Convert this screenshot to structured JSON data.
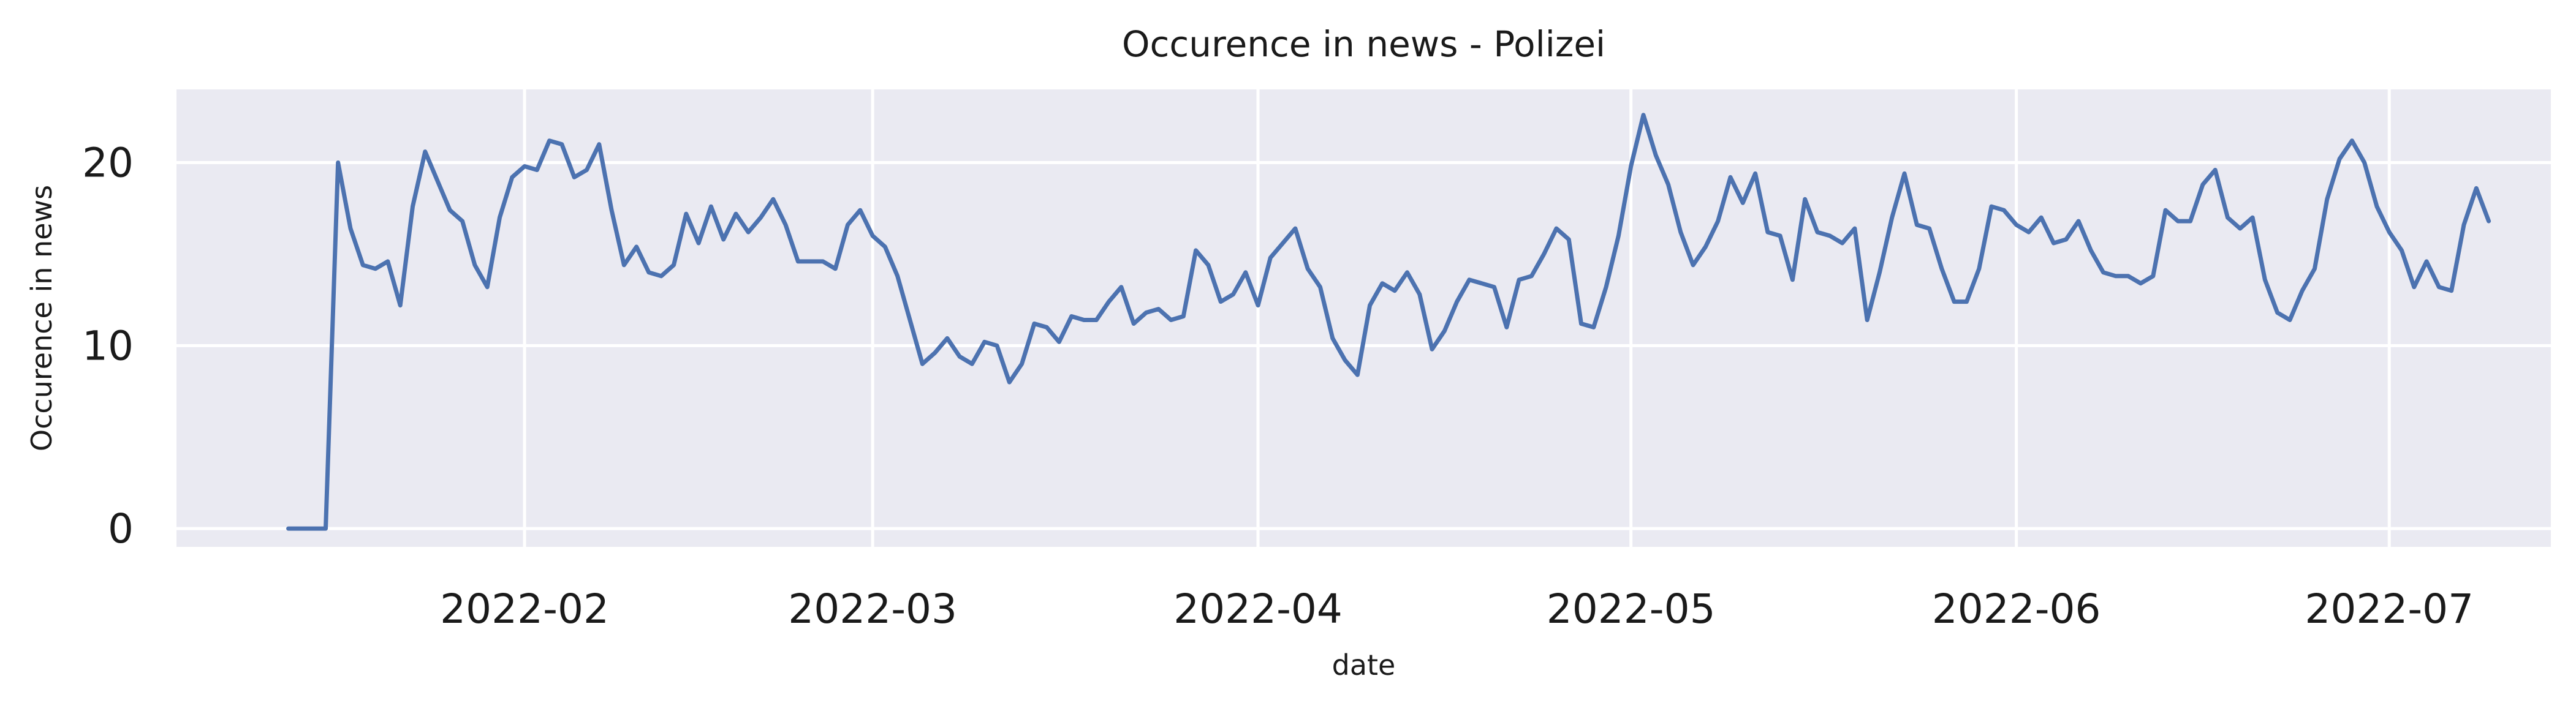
{
  "chart_data": {
    "type": "line",
    "title": "Occurence in news - Polizei",
    "xlabel": "date",
    "ylabel": "Occurence in news",
    "xlim": [
      "2022-01-04",
      "2022-07-14"
    ],
    "ylim": [
      -1,
      24
    ],
    "x_ticks": [
      "2022-02-01",
      "2022-03-01",
      "2022-04-01",
      "2022-05-01",
      "2022-06-01",
      "2022-07-01"
    ],
    "x_tick_labels": [
      "2022-02",
      "2022-03",
      "2022-04",
      "2022-05",
      "2022-06",
      "2022-07"
    ],
    "y_ticks": [
      0,
      10,
      20
    ],
    "y_tick_labels": [
      "0",
      "10",
      "20"
    ],
    "grid": true,
    "background": "#eaeaf2",
    "line_color": "#4c72b0",
    "series": [
      {
        "start": "2022-01-13",
        "values": [
          0,
          0,
          0,
          0,
          20,
          16.4,
          14.4,
          14.2,
          14.6,
          12.2,
          17.6,
          20.6,
          19,
          17.4,
          16.8,
          14.4,
          13.2,
          17,
          19.2,
          19.8,
          19.6,
          21.2,
          21,
          19.2,
          19.6,
          21,
          17.4,
          14.4,
          15.4,
          14,
          13.8,
          14.4,
          17.2,
          15.6,
          17.6,
          15.8,
          17.2,
          16.2,
          17,
          18,
          16.6,
          14.6,
          14.6,
          14.6,
          14.2,
          16.6,
          17.4,
          16,
          15.4,
          13.8,
          11.4,
          9,
          9.6,
          10.4,
          9.4,
          9,
          10.2,
          10,
          8,
          9,
          11.2,
          11,
          10.2,
          11.6,
          11.4,
          11.4,
          12.4,
          13.2,
          11.2,
          11.8,
          12,
          11.4,
          11.6,
          15.2,
          14.4,
          12.4,
          12.8,
          14,
          12.2,
          14.8,
          15.6,
          16.4,
          14.2,
          13.2,
          10.4,
          9.2,
          8.4,
          12.2,
          13.4,
          13,
          14,
          12.8,
          9.8,
          10.8,
          12.4,
          13.6,
          13.4,
          13.2,
          11,
          13.6,
          13.8,
          15,
          16.4,
          15.8,
          11.2,
          11,
          13.2,
          16,
          19.8,
          22.6,
          20.4,
          18.8,
          16.2,
          14.4,
          15.4,
          16.8,
          19.2,
          17.8,
          19.4,
          16.2,
          16,
          13.6,
          18,
          16.2,
          16,
          15.6,
          16.4,
          11.4,
          14,
          17,
          19.4,
          16.6,
          16.4,
          14.2,
          12.4,
          12.4,
          14.2,
          17.6,
          17.4,
          16.6,
          16.2,
          17,
          15.6,
          15.8,
          16.8,
          15.2,
          14,
          13.8,
          13.8,
          13.4,
          13.8,
          17.4,
          16.8,
          16.8,
          18.8,
          19.6,
          17,
          16.4,
          17,
          13.6,
          11.8,
          11.4,
          13,
          14.2,
          18,
          20.2,
          21.2,
          20,
          17.6,
          16.2,
          15.2,
          13.2,
          14.6,
          13.2,
          13,
          16.6,
          18.6,
          16.8
        ]
      }
    ]
  }
}
